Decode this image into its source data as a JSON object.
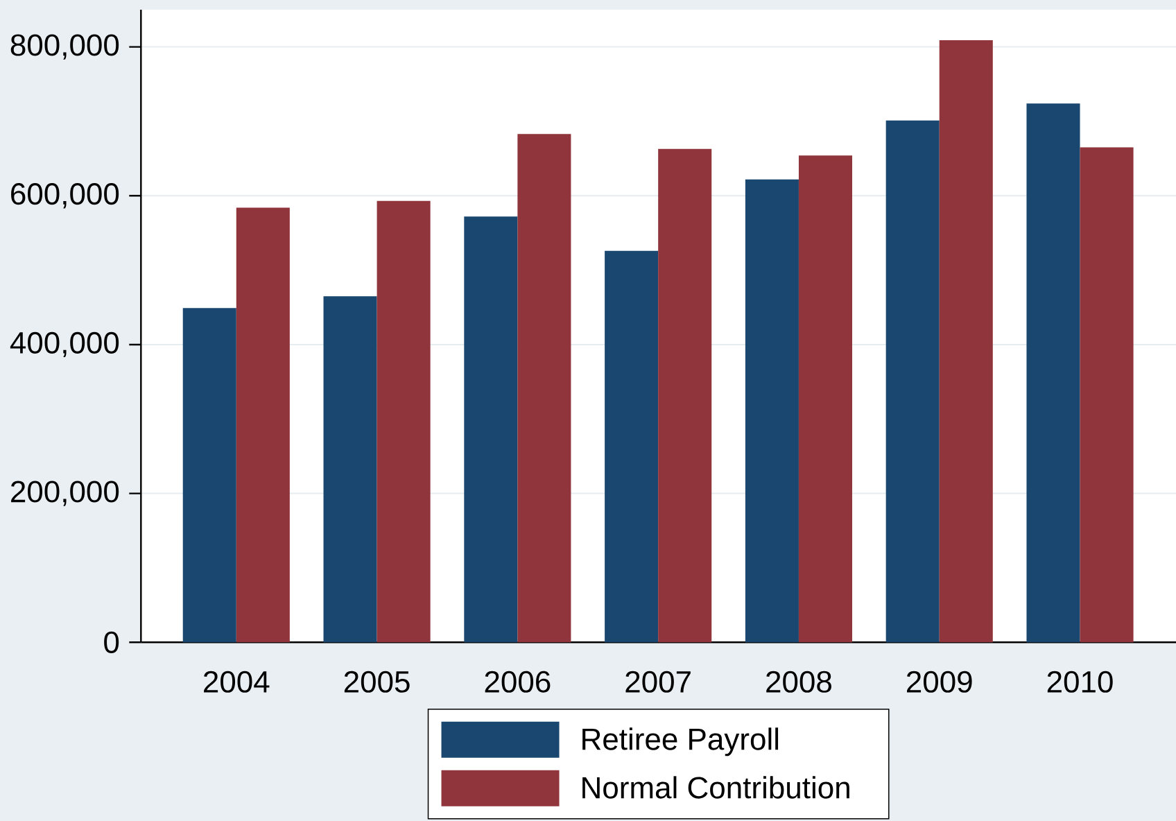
{
  "chart_data": {
    "type": "bar",
    "categories": [
      "2004",
      "2005",
      "2006",
      "2007",
      "2008",
      "2009",
      "2010"
    ],
    "series": [
      {
        "name": "Retiree Payroll",
        "color": "#1a476f",
        "values": [
          449000,
          465000,
          572000,
          526000,
          622000,
          701000,
          724000
        ]
      },
      {
        "name": "Normal Contribution",
        "color": "#90353b",
        "values": [
          584000,
          593000,
          683000,
          663000,
          654000,
          809000,
          665000
        ]
      }
    ],
    "ylim": [
      0,
      850000
    ],
    "yticks": [
      0,
      {
        "value": 200000,
        "label": "200,000"
      },
      {
        "value": 400000,
        "label": "400,000"
      },
      {
        "value": 600000,
        "label": "600,000"
      },
      {
        "value": 800000,
        "label": "800,000"
      }
    ],
    "grid": "y",
    "legend": "bottom"
  }
}
